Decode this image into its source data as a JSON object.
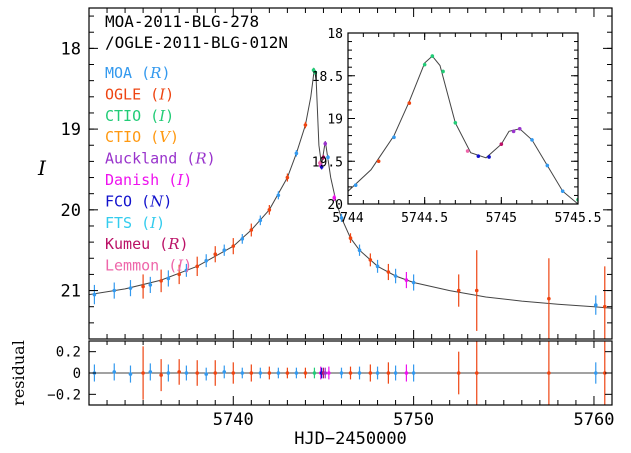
{
  "chart_data": [
    {
      "type": "scatter",
      "panel": "main light curve",
      "title_lines": [
        "MOA-2011-BLG-278",
        "/OGLE-2011-BLG-012N"
      ],
      "ylabel": "I",
      "xlim": [
        5732,
        5761
      ],
      "ylim": [
        21.6,
        17.5
      ],
      "y_inverted": true,
      "y_ticks": [
        18,
        19,
        20,
        21
      ],
      "legend_placement": "upper-left",
      "legend": [
        {
          "observatory": "MOA",
          "band": "R",
          "color": "#3399ee"
        },
        {
          "observatory": "OGLE",
          "band": "I",
          "color": "#ee4411"
        },
        {
          "observatory": "CTIO",
          "band": "I",
          "color": "#22cc77"
        },
        {
          "observatory": "CTIO",
          "band": "V",
          "color": "#ff9911"
        },
        {
          "observatory": "Auckland",
          "band": "R",
          "color": "#9933cc"
        },
        {
          "observatory": "Danish",
          "band": "I",
          "color": "#ee11ee"
        },
        {
          "observatory": "FCO",
          "band": "N",
          "color": "#1111cc"
        },
        {
          "observatory": "FTS",
          "band": "I",
          "color": "#33ccee"
        },
        {
          "observatory": "Kumeu",
          "band": "R",
          "color": "#bb1166"
        },
        {
          "observatory": "Lemmon",
          "band": "I",
          "color": "#ee66aa"
        }
      ],
      "model_curve": {
        "color": "#444444",
        "x": [
          5732.0,
          5734.0,
          5736.0,
          5738.0,
          5740.0,
          5741.0,
          5742.0,
          5743.0,
          5743.5,
          5744.0,
          5744.3,
          5744.5,
          5744.6,
          5744.75,
          5744.9,
          5745.0,
          5745.1,
          5745.2,
          5745.4,
          5745.7,
          5746.0,
          5746.5,
          5747.0,
          5748.0,
          5749.0,
          5750.0,
          5752.0,
          5754.0,
          5756.0,
          5758.0,
          5760.0,
          5761.0
        ],
        "y": [
          21.05,
          20.98,
          20.87,
          20.7,
          20.45,
          20.25,
          20.0,
          19.6,
          19.3,
          18.95,
          18.6,
          18.25,
          18.4,
          19.2,
          19.45,
          19.3,
          19.15,
          19.3,
          19.6,
          19.9,
          20.1,
          20.35,
          20.5,
          20.7,
          20.82,
          20.9,
          21.0,
          21.08,
          21.13,
          21.17,
          21.2,
          21.22
        ]
      },
      "points": [
        {
          "obs": "MOA",
          "x": 5732.3,
          "y": 21.05,
          "err": 0.12
        },
        {
          "obs": "MOA",
          "x": 5733.4,
          "y": 21.0,
          "err": 0.1
        },
        {
          "obs": "MOA",
          "x": 5734.3,
          "y": 20.97,
          "err": 0.1
        },
        {
          "obs": "OGLE",
          "x": 5735.0,
          "y": 20.95,
          "err": 0.15
        },
        {
          "obs": "MOA",
          "x": 5735.4,
          "y": 20.93,
          "err": 0.1
        },
        {
          "obs": "OGLE",
          "x": 5736.0,
          "y": 20.88,
          "err": 0.14
        },
        {
          "obs": "MOA",
          "x": 5736.4,
          "y": 20.85,
          "err": 0.1
        },
        {
          "obs": "OGLE",
          "x": 5737.0,
          "y": 20.8,
          "err": 0.12
        },
        {
          "obs": "MOA",
          "x": 5737.4,
          "y": 20.75,
          "err": 0.08
        },
        {
          "obs": "OGLE",
          "x": 5738.0,
          "y": 20.7,
          "err": 0.12
        },
        {
          "obs": "MOA",
          "x": 5738.5,
          "y": 20.63,
          "err": 0.08
        },
        {
          "obs": "OGLE",
          "x": 5739.0,
          "y": 20.55,
          "err": 0.1
        },
        {
          "obs": "MOA",
          "x": 5739.5,
          "y": 20.5,
          "err": 0.07
        },
        {
          "obs": "OGLE",
          "x": 5740.0,
          "y": 20.45,
          "err": 0.1
        },
        {
          "obs": "MOA",
          "x": 5740.5,
          "y": 20.36,
          "err": 0.06
        },
        {
          "obs": "OGLE",
          "x": 5741.0,
          "y": 20.25,
          "err": 0.08
        },
        {
          "obs": "MOA",
          "x": 5741.5,
          "y": 20.13,
          "err": 0.06
        },
        {
          "obs": "OGLE",
          "x": 5742.0,
          "y": 20.0,
          "err": 0.06
        },
        {
          "obs": "MOA",
          "x": 5742.5,
          "y": 19.82,
          "err": 0.05
        },
        {
          "obs": "OGLE",
          "x": 5743.0,
          "y": 19.6,
          "err": 0.05
        },
        {
          "obs": "MOA",
          "x": 5743.5,
          "y": 19.3,
          "err": 0.04
        },
        {
          "obs": "OGLE",
          "x": 5744.0,
          "y": 18.95,
          "err": 0.04
        },
        {
          "obs": "CTIO_I",
          "x": 5744.45,
          "y": 18.27,
          "err": 0.03
        },
        {
          "obs": "CTIO_I",
          "x": 5744.55,
          "y": 18.3,
          "err": 0.03
        },
        {
          "obs": "Danish",
          "x": 5744.85,
          "y": 19.45,
          "err": 0.03
        },
        {
          "obs": "FCO",
          "x": 5744.9,
          "y": 19.47,
          "err": 0.03
        },
        {
          "obs": "Lemmon",
          "x": 5744.8,
          "y": 19.42,
          "err": 0.03
        },
        {
          "obs": "Kumeu",
          "x": 5745.0,
          "y": 19.35,
          "err": 0.03
        },
        {
          "obs": "Auckland",
          "x": 5745.1,
          "y": 19.18,
          "err": 0.03
        },
        {
          "obs": "MOA",
          "x": 5745.25,
          "y": 19.35,
          "err": 0.03
        },
        {
          "obs": "Danish",
          "x": 5745.6,
          "y": 19.85,
          "err": 0.04
        },
        {
          "obs": "MOA",
          "x": 5746.0,
          "y": 20.1,
          "err": 0.05
        },
        {
          "obs": "OGLE",
          "x": 5746.5,
          "y": 20.35,
          "err": 0.06
        },
        {
          "obs": "MOA",
          "x": 5747.0,
          "y": 20.5,
          "err": 0.07
        },
        {
          "obs": "OGLE",
          "x": 5747.6,
          "y": 20.62,
          "err": 0.08
        },
        {
          "obs": "MOA",
          "x": 5748.0,
          "y": 20.7,
          "err": 0.08
        },
        {
          "obs": "OGLE",
          "x": 5748.6,
          "y": 20.77,
          "err": 0.1
        },
        {
          "obs": "MOA",
          "x": 5749.0,
          "y": 20.82,
          "err": 0.09
        },
        {
          "obs": "Danish",
          "x": 5749.6,
          "y": 20.87,
          "err": 0.1
        },
        {
          "obs": "MOA",
          "x": 5750.0,
          "y": 20.9,
          "err": 0.1
        },
        {
          "obs": "OGLE",
          "x": 5752.5,
          "y": 21.0,
          "err": 0.2
        },
        {
          "obs": "OGLE",
          "x": 5753.5,
          "y": 21.0,
          "err": 0.5
        },
        {
          "obs": "OGLE",
          "x": 5757.5,
          "y": 21.1,
          "err": 0.5
        },
        {
          "obs": "MOA",
          "x": 5760.1,
          "y": 21.18,
          "err": 0.12
        },
        {
          "obs": "OGLE",
          "x": 5760.6,
          "y": 21.2,
          "err": 0.5
        }
      ]
    },
    {
      "type": "scatter",
      "panel": "residual",
      "ylabel": "residual",
      "xlabel": "HJD−2450000",
      "xlim": [
        5732,
        5761
      ],
      "x_ticks": [
        5740,
        5750,
        5760
      ],
      "ylim": [
        -0.3,
        0.3
      ],
      "y_ticks": [
        0.2,
        0,
        -0.2
      ],
      "y_tick_labels": [
        "0.2",
        "0",
        "−0.2"
      ],
      "points": [
        {
          "obs": "MOA",
          "x": 5732.3,
          "y": 0.0,
          "err": 0.08
        },
        {
          "obs": "MOA",
          "x": 5733.4,
          "y": 0.01,
          "err": 0.08
        },
        {
          "obs": "MOA",
          "x": 5734.3,
          "y": -0.01,
          "err": 0.08
        },
        {
          "obs": "OGLE",
          "x": 5735.0,
          "y": 0.0,
          "err": 0.25
        },
        {
          "obs": "MOA",
          "x": 5735.4,
          "y": 0.01,
          "err": 0.08
        },
        {
          "obs": "OGLE",
          "x": 5736.0,
          "y": -0.02,
          "err": 0.15
        },
        {
          "obs": "MOA",
          "x": 5736.4,
          "y": 0.0,
          "err": 0.08
        },
        {
          "obs": "OGLE",
          "x": 5737.0,
          "y": 0.01,
          "err": 0.12
        },
        {
          "obs": "MOA",
          "x": 5737.4,
          "y": 0.0,
          "err": 0.07
        },
        {
          "obs": "OGLE",
          "x": 5738.0,
          "y": 0.0,
          "err": 0.12
        },
        {
          "obs": "MOA",
          "x": 5738.5,
          "y": -0.01,
          "err": 0.06
        },
        {
          "obs": "OGLE",
          "x": 5739.0,
          "y": 0.0,
          "err": 0.12
        },
        {
          "obs": "MOA",
          "x": 5739.5,
          "y": 0.01,
          "err": 0.06
        },
        {
          "obs": "OGLE",
          "x": 5740.0,
          "y": 0.0,
          "err": 0.1
        },
        {
          "obs": "MOA",
          "x": 5740.5,
          "y": 0.0,
          "err": 0.05
        },
        {
          "obs": "OGLE",
          "x": 5741.0,
          "y": 0.0,
          "err": 0.08
        },
        {
          "obs": "MOA",
          "x": 5741.5,
          "y": 0.0,
          "err": 0.05
        },
        {
          "obs": "OGLE",
          "x": 5742.0,
          "y": 0.0,
          "err": 0.06
        },
        {
          "obs": "MOA",
          "x": 5742.5,
          "y": 0.0,
          "err": 0.05
        },
        {
          "obs": "OGLE",
          "x": 5743.0,
          "y": 0.0,
          "err": 0.05
        },
        {
          "obs": "MOA",
          "x": 5743.5,
          "y": 0.0,
          "err": 0.05
        },
        {
          "obs": "OGLE",
          "x": 5744.0,
          "y": 0.0,
          "err": 0.05
        },
        {
          "obs": "CTIO_I",
          "x": 5744.5,
          "y": 0.0,
          "err": 0.05
        },
        {
          "obs": "Danish",
          "x": 5744.85,
          "y": 0.0,
          "err": 0.06
        },
        {
          "obs": "FCO",
          "x": 5744.9,
          "y": 0.0,
          "err": 0.05
        },
        {
          "obs": "Kumeu",
          "x": 5745.0,
          "y": 0.0,
          "err": 0.05
        },
        {
          "obs": "Danish",
          "x": 5745.3,
          "y": 0.0,
          "err": 0.06
        },
        {
          "obs": "Auckland",
          "x": 5745.1,
          "y": 0.0,
          "err": 0.05
        },
        {
          "obs": "MOA",
          "x": 5746.0,
          "y": 0.0,
          "err": 0.05
        },
        {
          "obs": "OGLE",
          "x": 5746.5,
          "y": 0.0,
          "err": 0.06
        },
        {
          "obs": "MOA",
          "x": 5747.0,
          "y": 0.0,
          "err": 0.06
        },
        {
          "obs": "OGLE",
          "x": 5747.6,
          "y": 0.0,
          "err": 0.08
        },
        {
          "obs": "MOA",
          "x": 5748.0,
          "y": 0.0,
          "err": 0.06
        },
        {
          "obs": "OGLE",
          "x": 5748.6,
          "y": 0.0,
          "err": 0.1
        },
        {
          "obs": "MOA",
          "x": 5749.0,
          "y": 0.0,
          "err": 0.07
        },
        {
          "obs": "Danish",
          "x": 5749.6,
          "y": 0.0,
          "err": 0.08
        },
        {
          "obs": "MOA",
          "x": 5750.0,
          "y": 0.0,
          "err": 0.08
        },
        {
          "obs": "OGLE",
          "x": 5752.5,
          "y": 0.0,
          "err": 0.2
        },
        {
          "obs": "OGLE",
          "x": 5753.5,
          "y": 0.0,
          "err": 0.35
        },
        {
          "obs": "OGLE",
          "x": 5757.5,
          "y": 0.0,
          "err": 0.3
        },
        {
          "obs": "MOA",
          "x": 5760.1,
          "y": 0.0,
          "err": 0.1
        },
        {
          "obs": "OGLE",
          "x": 5760.6,
          "y": 0.0,
          "err": 0.35
        }
      ]
    },
    {
      "type": "scatter",
      "panel": "inset zoom of peak",
      "xlim": [
        5744,
        5745.5
      ],
      "x_ticks": [
        5744,
        5744.5,
        5745,
        5745.5
      ],
      "ylim": [
        20.0,
        18.0
      ],
      "y_inverted": true,
      "y_ticks": [
        18,
        18.5,
        19,
        19.5,
        20
      ],
      "model_curve": {
        "color": "#444444",
        "x": [
          5744.0,
          5744.15,
          5744.3,
          5744.4,
          5744.5,
          5744.55,
          5744.6,
          5744.7,
          5744.8,
          5744.9,
          5745.0,
          5745.05,
          5745.12,
          5745.2,
          5745.3,
          5745.4,
          5745.5
        ],
        "y": [
          19.85,
          19.6,
          19.2,
          18.8,
          18.35,
          18.27,
          18.38,
          19.05,
          19.4,
          19.46,
          19.3,
          19.15,
          19.12,
          19.25,
          19.55,
          19.85,
          20.0
        ]
      },
      "points": [
        {
          "obs": "MOA",
          "x": 5744.05,
          "y": 19.78,
          "err": 0.02
        },
        {
          "obs": "OGLE",
          "x": 5744.2,
          "y": 19.5,
          "err": 0.02
        },
        {
          "obs": "MOA",
          "x": 5744.3,
          "y": 19.22,
          "err": 0.02
        },
        {
          "obs": "OGLE",
          "x": 5744.4,
          "y": 18.82,
          "err": 0.02
        },
        {
          "obs": "CTIO_I",
          "x": 5744.5,
          "y": 18.37,
          "err": 0.02
        },
        {
          "obs": "CTIO_I",
          "x": 5744.55,
          "y": 18.27,
          "err": 0.02
        },
        {
          "obs": "CTIO_I",
          "x": 5744.62,
          "y": 18.45,
          "err": 0.02
        },
        {
          "obs": "CTIO_I",
          "x": 5744.7,
          "y": 19.05,
          "err": 0.02
        },
        {
          "obs": "Lemmon",
          "x": 5744.78,
          "y": 19.38,
          "err": 0.02
        },
        {
          "obs": "FCO",
          "x": 5744.85,
          "y": 19.44,
          "err": 0.02
        },
        {
          "obs": "FCO",
          "x": 5744.92,
          "y": 19.45,
          "err": 0.02
        },
        {
          "obs": "Kumeu",
          "x": 5745.0,
          "y": 19.3,
          "err": 0.02
        },
        {
          "obs": "Auckland",
          "x": 5745.08,
          "y": 19.15,
          "err": 0.02
        },
        {
          "obs": "Auckland",
          "x": 5745.12,
          "y": 19.12,
          "err": 0.02
        },
        {
          "obs": "MOA",
          "x": 5745.2,
          "y": 19.25,
          "err": 0.02
        },
        {
          "obs": "MOA",
          "x": 5745.3,
          "y": 19.55,
          "err": 0.02
        },
        {
          "obs": "MOA",
          "x": 5745.4,
          "y": 19.85,
          "err": 0.02
        },
        {
          "obs": "CTIO_I",
          "x": 5745.5,
          "y": 19.95,
          "err": 0.02
        }
      ]
    }
  ]
}
